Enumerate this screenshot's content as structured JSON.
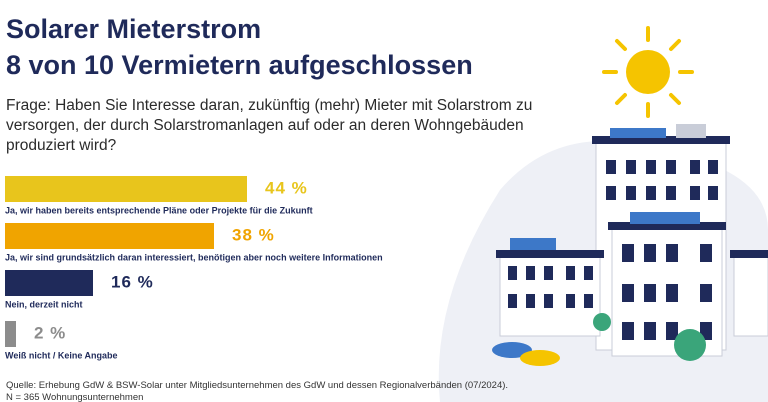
{
  "chart_data": {
    "type": "bar",
    "title": "Solarer Mieterstrom",
    "subtitle": "8 von 10 Vermietern aufgeschlossen",
    "question": "Frage: Haben Sie Interesse daran, zukünftig (mehr) Mieter mit Solarstrom zu versorgen, der durch Solarstromanlagen auf oder an deren Wohngebäuden produziert wird?",
    "categories": [
      "Ja, wir haben bereits entsprechende Pläne oder Projekte für die Zukunft",
      "Ja, wir sind grundsätzlich daran interessiert, benötigen aber noch weitere Informationen",
      "Nein, derzeit nicht",
      "Weiß nicht / Keine Angabe"
    ],
    "values": [
      44,
      38,
      16,
      2
    ],
    "value_labels": [
      "44 %",
      "38 %",
      "16 %",
      "2 %"
    ],
    "colors": [
      "#e8c51c",
      "#f0a400",
      "#1f2a5a",
      "#8c8c8c"
    ],
    "notes": [
      "Quelle: Erhebung GdW & BSW-Solar unter Mitgliedsunternehmen des GdW und dessen Regionalverbänden (07/2024).",
      "N = 365 Wohnungsunternehmen"
    ]
  }
}
